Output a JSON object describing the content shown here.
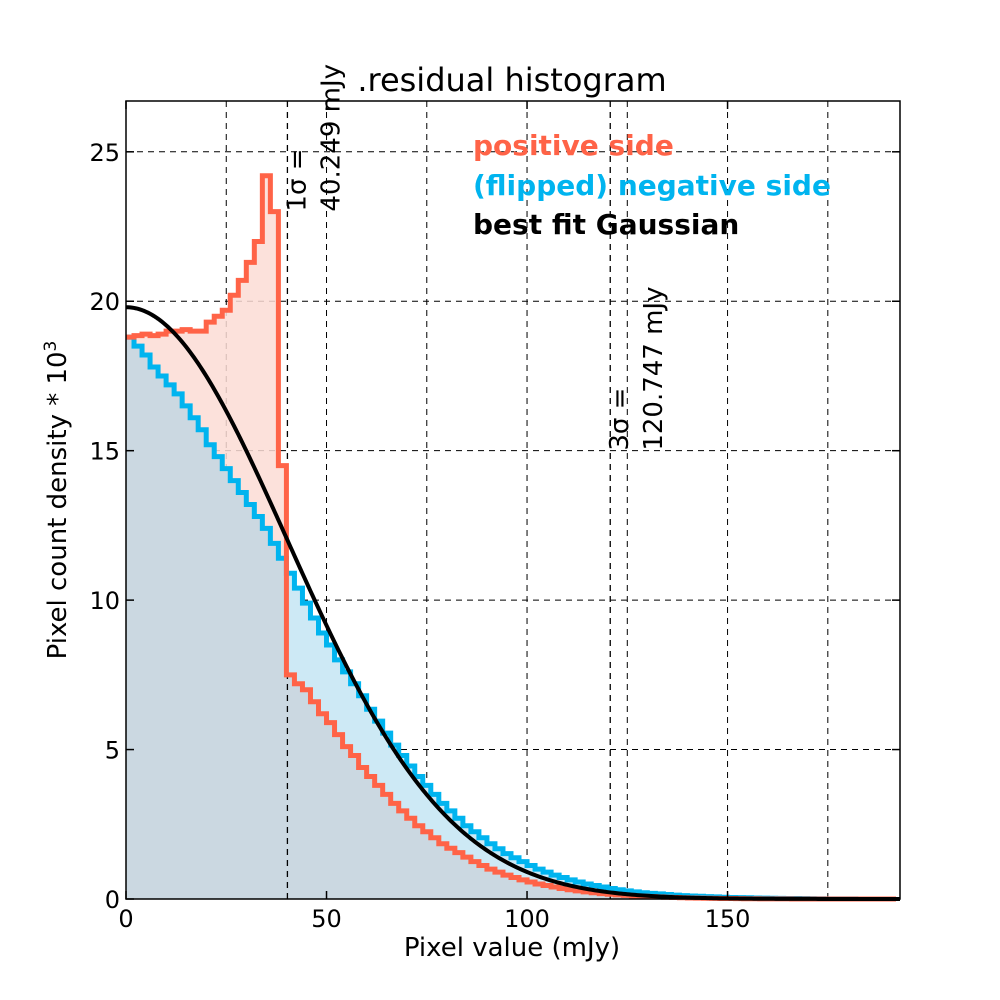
{
  "chart_data": {
    "type": "histogram",
    "title": ".residual histogram",
    "xlabel": "Pixel value (mJy)",
    "ylabel": "Pixel count density * 10",
    "ylabel_superscript": "3",
    "xlim": [
      0,
      193
    ],
    "ylim": [
      0,
      26.7
    ],
    "xticks": [
      0,
      50,
      100,
      150
    ],
    "yticks": [
      0,
      5,
      10,
      15,
      20,
      25
    ],
    "grid": true,
    "legend_position": "top-right",
    "legend": [
      {
        "name": "positive side",
        "color": "#ff6347"
      },
      {
        "name": "(flipped) negative side",
        "color": "#00b4ef"
      },
      {
        "name": "best fit Gaussian",
        "color": "#000000"
      }
    ],
    "vlines": [
      {
        "x": 40.249,
        "label_line1": "1σ =",
        "label_line2": "40.249 mJy"
      },
      {
        "x": 120.747,
        "label_line1": "3σ =",
        "label_line2": "120.747 mJy"
      }
    ],
    "gaussian": {
      "amplitude": 19.8,
      "sigma": 40.249,
      "mean": 0
    },
    "bin_width": 2,
    "series": [
      {
        "name": "positive side",
        "color": "#ff6347",
        "fill": "#fcdcd5",
        "values": [
          18.8,
          18.85,
          18.9,
          18.85,
          18.9,
          19.0,
          19.0,
          19.05,
          19.0,
          19.0,
          19.3,
          19.5,
          19.7,
          20.2,
          20.7,
          21.3,
          22.0,
          24.2,
          23.0,
          14.5,
          7.5,
          7.2,
          7.0,
          6.6,
          6.2,
          5.9,
          5.5,
          5.1,
          4.8,
          4.4,
          4.1,
          3.8,
          3.5,
          3.2,
          2.95,
          2.7,
          2.45,
          2.25,
          2.05,
          1.85,
          1.7,
          1.55,
          1.4,
          1.25,
          1.12,
          1.0,
          0.9,
          0.8,
          0.72,
          0.64,
          0.57,
          0.5,
          0.45,
          0.4,
          0.35,
          0.31,
          0.27,
          0.24,
          0.21,
          0.18,
          0.16,
          0.14,
          0.12,
          0.1,
          0.09,
          0.08,
          0.07,
          0.06,
          0.05,
          0.04,
          0.035,
          0.03,
          0.025,
          0.02,
          0.018,
          0.015,
          0.012,
          0.01,
          0.008,
          0.006,
          0.005,
          0.004,
          0.003,
          0.002,
          0.002,
          0.001,
          0.001,
          0.001,
          0.0,
          0.0,
          0.0,
          0.0,
          0.0,
          0.0,
          0.0,
          0.0
        ]
      },
      {
        "name": "(flipped) negative side",
        "color": "#00b4ef",
        "fill": "#cde9f5",
        "values": [
          18.8,
          18.5,
          18.2,
          17.8,
          17.5,
          17.2,
          16.9,
          16.5,
          16.1,
          15.7,
          15.2,
          14.8,
          14.4,
          14.0,
          13.6,
          13.2,
          12.8,
          12.4,
          11.9,
          11.4,
          10.9,
          10.4,
          9.9,
          9.4,
          8.9,
          8.5,
          8.0,
          7.6,
          7.2,
          6.8,
          6.35,
          5.95,
          5.55,
          5.15,
          4.8,
          4.45,
          4.1,
          3.8,
          3.5,
          3.2,
          2.95,
          2.7,
          2.45,
          2.25,
          2.05,
          1.85,
          1.68,
          1.52,
          1.38,
          1.25,
          1.12,
          1.0,
          0.9,
          0.8,
          0.72,
          0.64,
          0.57,
          0.5,
          0.45,
          0.4,
          0.35,
          0.31,
          0.27,
          0.24,
          0.21,
          0.19,
          0.17,
          0.15,
          0.13,
          0.115,
          0.1,
          0.09,
          0.08,
          0.07,
          0.06,
          0.05,
          0.045,
          0.04,
          0.035,
          0.03,
          0.025,
          0.02,
          0.018,
          0.015,
          0.012,
          0.01,
          0.008,
          0.006,
          0.005,
          0.004,
          0.003,
          0.002,
          0.001,
          0.001,
          0.0,
          0.0
        ]
      }
    ]
  }
}
